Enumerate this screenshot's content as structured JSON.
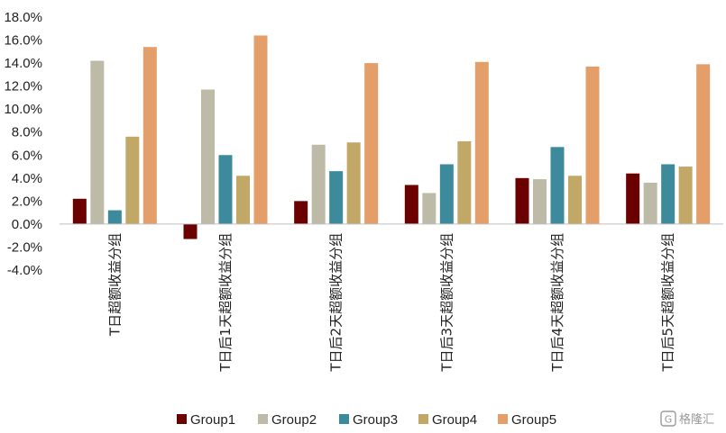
{
  "chart_data": {
    "type": "bar",
    "categories": [
      "T日超额收益分组",
      "T日后1天超额收益分组",
      "T日后2天超额收益分组",
      "T日后3天超额收益分组",
      "T日后4天超额收益分组",
      "T日后5天超额收益分组"
    ],
    "series": [
      {
        "name": "Group1",
        "color": "#6b0000",
        "values": [
          2.2,
          -1.3,
          2.0,
          3.4,
          4.0,
          4.4
        ]
      },
      {
        "name": "Group2",
        "color": "#bdbaa8",
        "values": [
          14.2,
          11.7,
          6.9,
          2.7,
          3.9,
          3.6
        ]
      },
      {
        "name": "Group3",
        "color": "#3c8a9b",
        "values": [
          1.2,
          6.0,
          4.6,
          5.2,
          6.7,
          5.2
        ]
      },
      {
        "name": "Group4",
        "color": "#c2a867",
        "values": [
          7.6,
          4.2,
          7.1,
          7.2,
          4.2,
          5.0
        ]
      },
      {
        "name": "Group5",
        "color": "#e39e6a",
        "values": [
          15.4,
          16.4,
          14.0,
          14.1,
          13.7,
          13.9
        ]
      }
    ],
    "ylim": [
      -4,
      18
    ],
    "yticks": [
      -4,
      -2,
      0,
      2,
      4,
      6,
      8,
      10,
      12,
      14,
      16,
      18
    ],
    "ytick_format": "{v}.0%",
    "legend_position": "bottom",
    "grid": false
  },
  "watermark": {
    "text": "格隆汇"
  }
}
